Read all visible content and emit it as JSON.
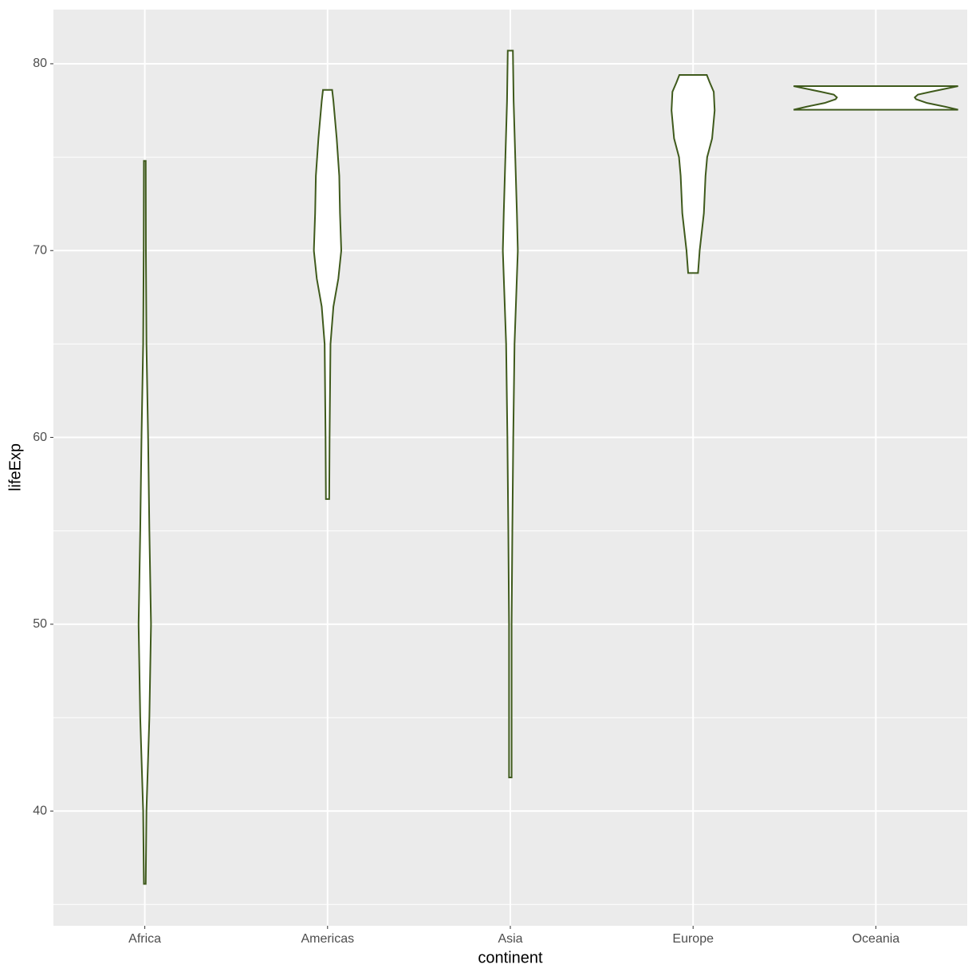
{
  "chart_data": {
    "type": "violin",
    "x_label": "continent",
    "y_label": "lifeExp",
    "categories": [
      "Africa",
      "Americas",
      "Asia",
      "Europe",
      "Oceania"
    ],
    "color": "#3f5a1c",
    "fill": "#ffffff",
    "violins": [
      {
        "y": [
          36.1,
          40,
          45,
          50,
          55,
          60,
          65,
          70,
          74.8
        ],
        "density": [
          0.005,
          0.009,
          0.025,
          0.034,
          0.025,
          0.018,
          0.009,
          0.006,
          0.005
        ]
      },
      {
        "y": [
          56.7,
          60,
          63,
          65,
          67,
          68.5,
          70,
          72,
          74,
          76,
          78,
          78.6
        ],
        "density": [
          0.009,
          0.011,
          0.014,
          0.016,
          0.032,
          0.059,
          0.075,
          0.068,
          0.064,
          0.05,
          0.032,
          0.025
        ]
      },
      {
        "y": [
          41.8,
          45,
          50,
          55,
          58,
          60,
          65,
          70,
          72,
          75,
          78,
          80.7
        ],
        "density": [
          0.007,
          0.007,
          0.007,
          0.011,
          0.014,
          0.016,
          0.023,
          0.041,
          0.036,
          0.027,
          0.018,
          0.014
        ]
      },
      {
        "y": [
          68.8,
          70,
          72,
          74,
          75,
          76,
          77.5,
          78.5,
          79,
          79.4
        ],
        "density": [
          0.027,
          0.036,
          0.059,
          0.068,
          0.077,
          0.104,
          0.118,
          0.113,
          0.091,
          0.075
        ]
      },
      {
        "y": [
          77.54,
          77.7,
          77.9,
          78.1,
          78.2,
          78.35,
          78.5,
          78.7,
          78.8
        ],
        "density": [
          0.45,
          0.38,
          0.28,
          0.22,
          0.213,
          0.23,
          0.3,
          0.4,
          0.45
        ]
      }
    ],
    "ylim": [
      33.86,
      82.9
    ],
    "yticks": [
      40,
      50,
      60,
      70,
      80
    ],
    "yminorticks": [
      35,
      45,
      55,
      65,
      75
    ],
    "grid": true
  }
}
